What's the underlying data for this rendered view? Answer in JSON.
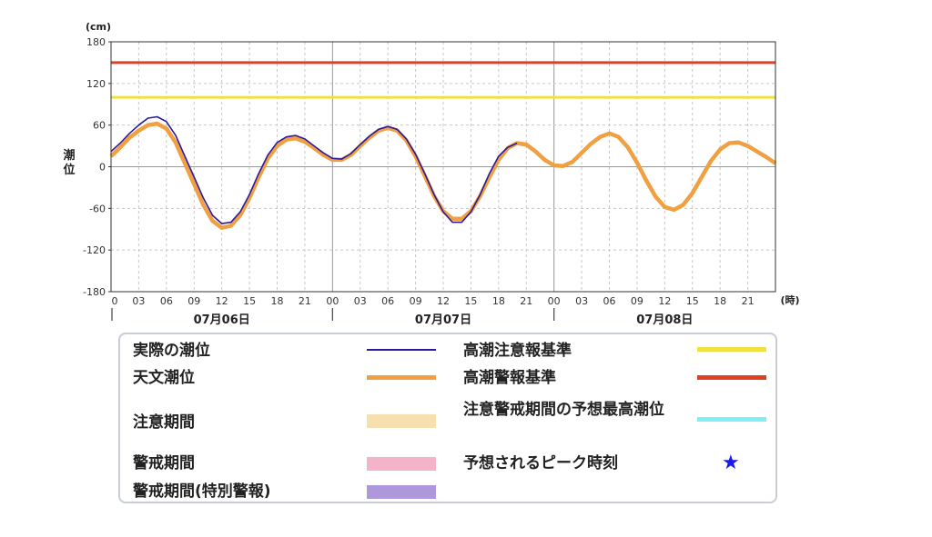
{
  "chart_data": {
    "type": "line",
    "ylabel": "潮位",
    "yunit": "(cm)",
    "xunit": "(時)",
    "ylim": [
      -180,
      180
    ],
    "yticks": [
      180,
      120,
      60,
      0,
      -60,
      -120,
      -180
    ],
    "xlim_hours": [
      0,
      72
    ],
    "xtick_labels": [
      "0",
      "03",
      "06",
      "09",
      "12",
      "15",
      "18",
      "21",
      "00",
      "03",
      "06",
      "09",
      "12",
      "15",
      "18",
      "21",
      "00",
      "03",
      "06",
      "09",
      "12",
      "15",
      "18",
      "21"
    ],
    "date_labels": [
      "07月06日",
      "07月07日",
      "07月08日"
    ],
    "grid": true,
    "thresholds": [
      {
        "name": "高潮注意報基準",
        "value": 100,
        "color": "#f0e040"
      },
      {
        "name": "高潮警報基準",
        "value": 150,
        "color": "#e04020"
      }
    ],
    "series": [
      {
        "name": "天文潮位",
        "color": "#f0a040",
        "points": [
          [
            0,
            15
          ],
          [
            1,
            28
          ],
          [
            2,
            42
          ],
          [
            3,
            52
          ],
          [
            4,
            60
          ],
          [
            5,
            62
          ],
          [
            6,
            55
          ],
          [
            7,
            35
          ],
          [
            8,
            5
          ],
          [
            9,
            -25
          ],
          [
            10,
            -55
          ],
          [
            11,
            -78
          ],
          [
            12,
            -88
          ],
          [
            13,
            -85
          ],
          [
            14,
            -70
          ],
          [
            15,
            -45
          ],
          [
            16,
            -15
          ],
          [
            17,
            12
          ],
          [
            18,
            30
          ],
          [
            19,
            39
          ],
          [
            20,
            41
          ],
          [
            21,
            36
          ],
          [
            22,
            27
          ],
          [
            23,
            17
          ],
          [
            24,
            10
          ],
          [
            25,
            10
          ],
          [
            26,
            17
          ],
          [
            27,
            30
          ],
          [
            28,
            42
          ],
          [
            29,
            52
          ],
          [
            30,
            56
          ],
          [
            31,
            52
          ],
          [
            32,
            38
          ],
          [
            33,
            15
          ],
          [
            34,
            -13
          ],
          [
            35,
            -42
          ],
          [
            36,
            -64
          ],
          [
            37,
            -75
          ],
          [
            38,
            -75
          ],
          [
            39,
            -64
          ],
          [
            40,
            -42
          ],
          [
            41,
            -15
          ],
          [
            42,
            10
          ],
          [
            43,
            27
          ],
          [
            44,
            34
          ],
          [
            45,
            32
          ],
          [
            46,
            22
          ],
          [
            47,
            10
          ],
          [
            48,
            2
          ],
          [
            49,
            1
          ],
          [
            50,
            7
          ],
          [
            51,
            20
          ],
          [
            52,
            33
          ],
          [
            53,
            43
          ],
          [
            54,
            48
          ],
          [
            55,
            43
          ],
          [
            56,
            28
          ],
          [
            57,
            6
          ],
          [
            58,
            -20
          ],
          [
            59,
            -43
          ],
          [
            60,
            -58
          ],
          [
            61,
            -62
          ],
          [
            62,
            -55
          ],
          [
            63,
            -38
          ],
          [
            64,
            -15
          ],
          [
            65,
            8
          ],
          [
            66,
            25
          ],
          [
            67,
            34
          ],
          [
            68,
            35
          ],
          [
            69,
            30
          ],
          [
            70,
            22
          ],
          [
            71,
            14
          ],
          [
            72,
            5
          ]
        ]
      },
      {
        "name": "実際の潮位",
        "color": "#2a1aa0",
        "points": [
          [
            0,
            22
          ],
          [
            1,
            34
          ],
          [
            2,
            48
          ],
          [
            3,
            60
          ],
          [
            4,
            70
          ],
          [
            5,
            72
          ],
          [
            6,
            65
          ],
          [
            7,
            45
          ],
          [
            8,
            15
          ],
          [
            9,
            -15
          ],
          [
            10,
            -45
          ],
          [
            11,
            -70
          ],
          [
            12,
            -82
          ],
          [
            13,
            -80
          ],
          [
            14,
            -65
          ],
          [
            15,
            -40
          ],
          [
            16,
            -10
          ],
          [
            17,
            17
          ],
          [
            18,
            35
          ],
          [
            19,
            43
          ],
          [
            20,
            45
          ],
          [
            21,
            40
          ],
          [
            22,
            30
          ],
          [
            23,
            20
          ],
          [
            24,
            12
          ],
          [
            25,
            11
          ],
          [
            26,
            19
          ],
          [
            27,
            32
          ],
          [
            28,
            44
          ],
          [
            29,
            54
          ],
          [
            30,
            58
          ],
          [
            31,
            54
          ],
          [
            32,
            40
          ],
          [
            33,
            18
          ],
          [
            34,
            -10
          ],
          [
            35,
            -40
          ],
          [
            36,
            -65
          ],
          [
            37,
            -80
          ],
          [
            38,
            -80
          ],
          [
            39,
            -65
          ],
          [
            40,
            -40
          ],
          [
            41,
            -10
          ],
          [
            42,
            15
          ],
          [
            43,
            28
          ],
          [
            44,
            34
          ]
        ]
      }
    ]
  },
  "legend": {
    "items": [
      {
        "label": "実際の潮位",
        "color": "#2a1aa0",
        "style": "line"
      },
      {
        "label": "天文潮位",
        "color": "#f0a040",
        "style": "thick-line"
      },
      {
        "label": "注意期間",
        "color": "#f7dfb0",
        "style": "band"
      },
      {
        "label": "警戒期間",
        "color": "#f3b3c8",
        "style": "band"
      },
      {
        "label": "警戒期間(特別警報)",
        "color": "#ad98dc",
        "style": "band"
      },
      {
        "label": "高潮注意報基準",
        "color": "#f0e040",
        "style": "thick-line"
      },
      {
        "label": "高潮警報基準",
        "color": "#e04020",
        "style": "thick-line"
      },
      {
        "label": "注意警戒期間の予想最高潮位",
        "color": "#80eef2",
        "style": "thick-line"
      },
      {
        "label": "予想されるピーク時刻",
        "color": "#1a1aee",
        "style": "star",
        "symbol": "★"
      }
    ]
  }
}
